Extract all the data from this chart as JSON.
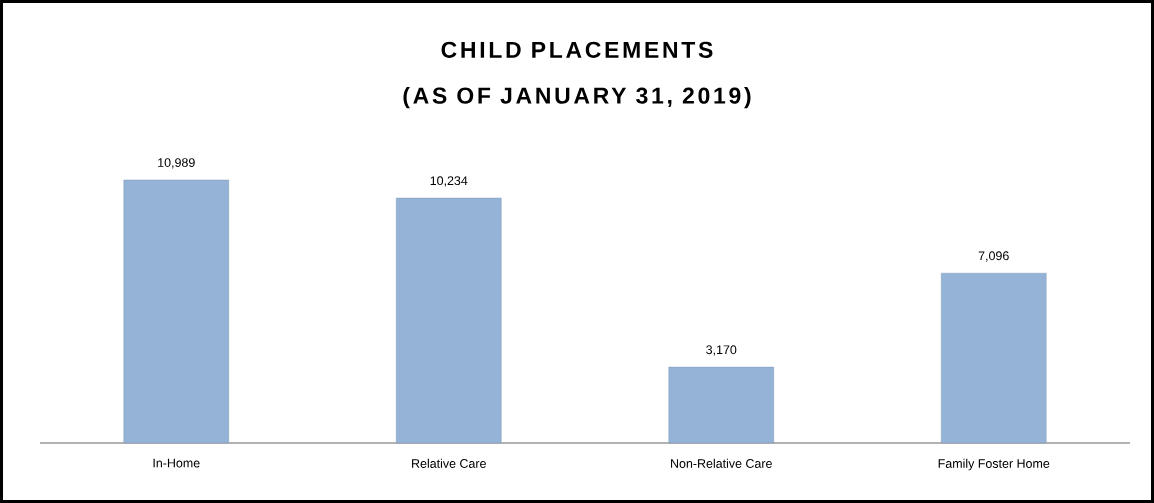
{
  "chart_data": {
    "type": "bar",
    "title": "CHILD PLACEMENTS\n(AS OF JANUARY 31, 2019)",
    "categories": [
      "In-Home",
      "Relative Care",
      "Non-Relative Care",
      "Family Foster Home"
    ],
    "values": [
      10989,
      10234,
      3170,
      7096
    ],
    "value_labels": [
      "10,989",
      "10,234",
      "3,170",
      "7,096"
    ],
    "color": "#95b3d7"
  }
}
